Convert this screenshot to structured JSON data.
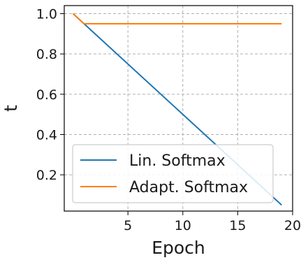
{
  "chart_data": {
    "type": "line",
    "title": "",
    "xlabel": "Epoch",
    "ylabel": "t",
    "xlim": [
      -0.8,
      20
    ],
    "ylim": [
      0.02,
      1.04
    ],
    "xticks": [
      5,
      10,
      15,
      20
    ],
    "xtick_labels": [
      "5",
      "10",
      "15",
      "20"
    ],
    "yticks": [
      0.2,
      0.4,
      0.6,
      0.8,
      1.0
    ],
    "ytick_labels": [
      "0.2",
      "0.4",
      "0.6",
      "0.8",
      "1.0"
    ],
    "grid": true,
    "legend_position": "lower-left",
    "series": [
      {
        "name": "Lin. Softmax",
        "color": "#1f77b4",
        "x": [
          0,
          19
        ],
        "y": [
          1.0,
          0.05
        ]
      },
      {
        "name": "Adapt. Softmax",
        "color": "#ff7f0e",
        "x": [
          0,
          1,
          19
        ],
        "y": [
          1.0,
          0.95,
          0.95
        ]
      }
    ]
  }
}
